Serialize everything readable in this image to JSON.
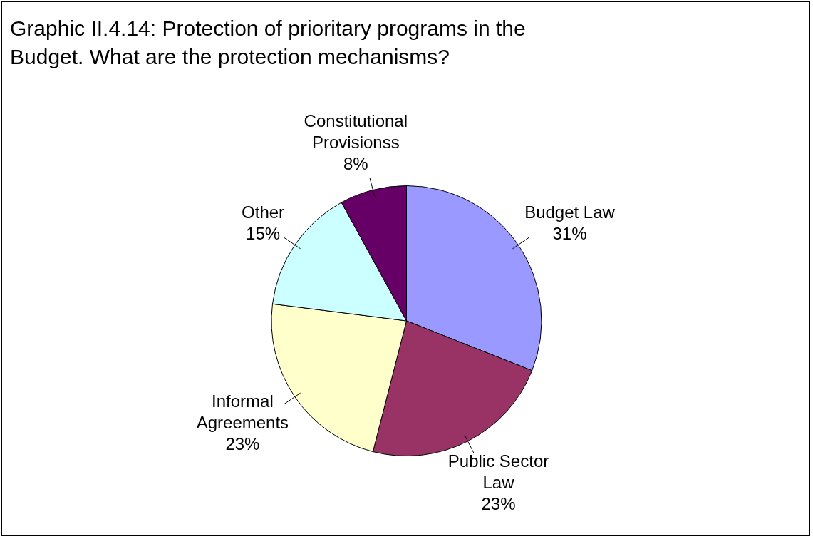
{
  "chart_data": {
    "type": "pie",
    "title": "Graphic II.4.14: Protection of prioritary programs in the Budget. What are the protection mechanisms?",
    "categories": [
      "Budget Law",
      "Public Sector Law",
      "Informal Agreements",
      "Other",
      "Constitutional Provisionss"
    ],
    "values": [
      31,
      23,
      23,
      15,
      8
    ],
    "value_labels": [
      "31%",
      "23%",
      "23%",
      "15%",
      "8%"
    ],
    "colors": [
      "#9999ff",
      "#993366",
      "#ffffcc",
      "#ccffff",
      "#660066"
    ],
    "legend": false
  }
}
